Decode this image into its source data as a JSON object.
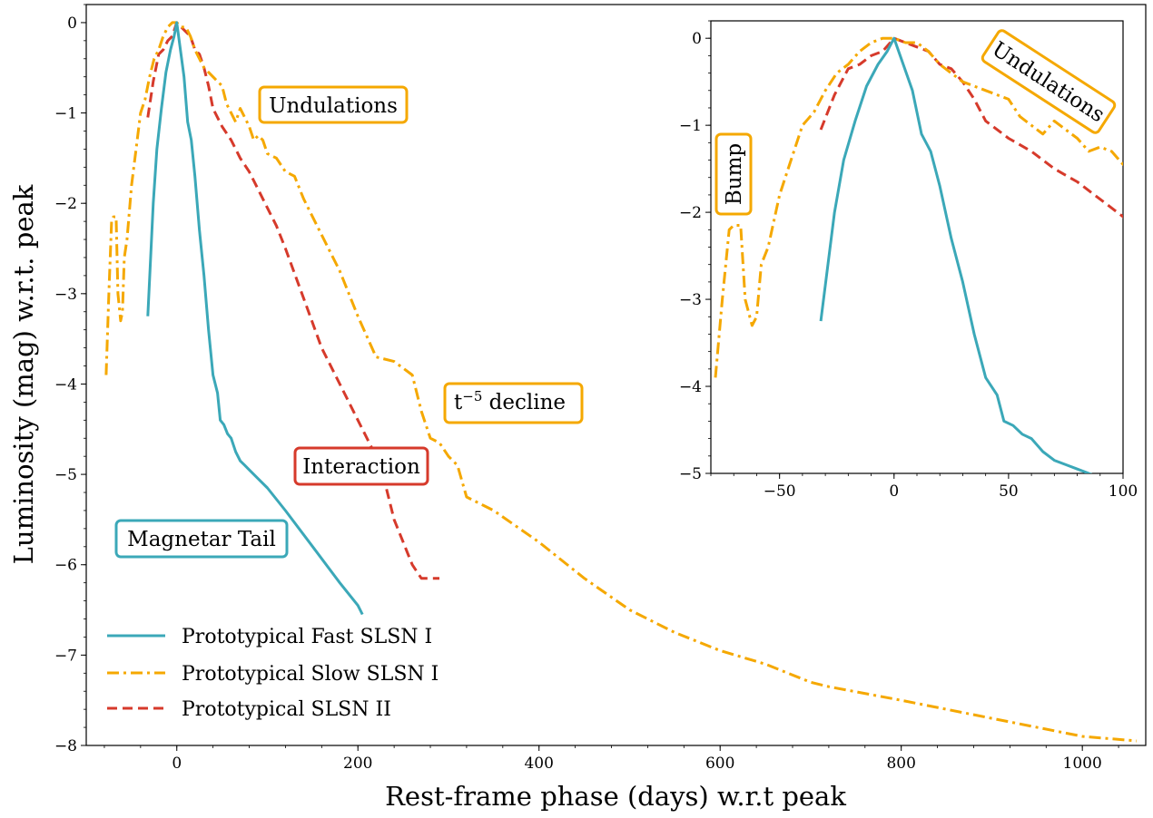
{
  "chart_data": [
    {
      "type": "line",
      "title": "",
      "xlabel": "Rest-frame phase (days) w.r.t peak",
      "ylabel": "Luminosity (mag) w.r.t. peak",
      "xlim": [
        -100,
        1070
      ],
      "ylim": [
        -8,
        0.2
      ],
      "xticks": [
        0,
        200,
        400,
        600,
        800,
        1000
      ],
      "yticks": [
        0,
        -1,
        -2,
        -3,
        -4,
        -5,
        -6,
        -7,
        -8
      ],
      "grid": false,
      "legend": "lower-left",
      "series": [
        {
          "name": "Prototypical Fast SLSN I",
          "color": "#3ba8b8",
          "style": "solid",
          "x": [
            -32,
            -26,
            -22,
            -17,
            -12,
            -7,
            -3,
            0,
            4,
            8,
            12,
            16,
            20,
            25,
            30,
            35,
            40,
            45,
            48,
            52,
            56,
            60,
            65,
            70,
            75,
            80,
            90,
            100,
            120,
            150,
            180,
            200,
            205
          ],
          "y": [
            -3.25,
            -2.0,
            -1.4,
            -0.95,
            -0.55,
            -0.3,
            -0.15,
            0.0,
            -0.3,
            -0.6,
            -1.1,
            -1.3,
            -1.7,
            -2.3,
            -2.8,
            -3.4,
            -3.9,
            -4.1,
            -4.4,
            -4.45,
            -4.55,
            -4.6,
            -4.75,
            -4.85,
            -4.9,
            -4.95,
            -5.05,
            -5.15,
            -5.4,
            -5.8,
            -6.2,
            -6.45,
            -6.55
          ]
        },
        {
          "name": "Prototypical Slow SLSN I",
          "color": "#f5a800",
          "style": "dashdot",
          "x": [
            -78,
            -75,
            -72,
            -70,
            -67,
            -65,
            -62,
            -60,
            -58,
            -55,
            -50,
            -45,
            -40,
            -35,
            -30,
            -25,
            -20,
            -15,
            -10,
            -5,
            0,
            5,
            10,
            15,
            20,
            25,
            30,
            35,
            40,
            45,
            50,
            55,
            60,
            65,
            70,
            75,
            80,
            85,
            90,
            95,
            100,
            110,
            120,
            130,
            140,
            160,
            180,
            200,
            220,
            240,
            260,
            270,
            280,
            290,
            300,
            310,
            320,
            330,
            340,
            350,
            400,
            450,
            500,
            550,
            600,
            650,
            700,
            720,
            800,
            900,
            1000,
            1060
          ],
          "y": [
            -3.9,
            -3.0,
            -2.2,
            -2.15,
            -2.15,
            -3.0,
            -3.3,
            -3.2,
            -2.6,
            -2.4,
            -1.8,
            -1.4,
            -1.0,
            -0.85,
            -0.6,
            -0.4,
            -0.3,
            -0.15,
            -0.05,
            0.0,
            0.0,
            -0.05,
            -0.05,
            -0.15,
            -0.3,
            -0.4,
            -0.5,
            -0.55,
            -0.6,
            -0.65,
            -0.7,
            -0.9,
            -1.0,
            -1.1,
            -0.95,
            -1.05,
            -1.15,
            -1.3,
            -1.25,
            -1.3,
            -1.45,
            -1.5,
            -1.65,
            -1.7,
            -1.95,
            -2.35,
            -2.75,
            -3.25,
            -3.7,
            -3.75,
            -3.9,
            -4.3,
            -4.6,
            -4.65,
            -4.8,
            -4.9,
            -5.25,
            -5.3,
            -5.35,
            -5.4,
            -5.75,
            -6.15,
            -6.5,
            -6.75,
            -6.95,
            -7.1,
            -7.3,
            -7.35,
            -7.5,
            -7.7,
            -7.9,
            -7.95
          ]
        },
        {
          "name": "Prototypical SLSN II",
          "color": "#d63a2b",
          "style": "dashed",
          "x": [
            -32,
            -26,
            -20,
            -15,
            -10,
            -5,
            0,
            5,
            10,
            15,
            20,
            25,
            30,
            35,
            40,
            50,
            60,
            70,
            80,
            90,
            100,
            110,
            120,
            140,
            160,
            180,
            200,
            220,
            230,
            240,
            260,
            270,
            290
          ],
          "y": [
            -1.05,
            -0.65,
            -0.35,
            -0.3,
            -0.2,
            -0.15,
            0.0,
            -0.05,
            -0.1,
            -0.15,
            -0.3,
            -0.35,
            -0.5,
            -0.7,
            -0.95,
            -1.15,
            -1.3,
            -1.5,
            -1.65,
            -1.85,
            -2.05,
            -2.25,
            -2.5,
            -3.05,
            -3.6,
            -4.0,
            -4.4,
            -4.8,
            -5.1,
            -5.5,
            -6.0,
            -6.15,
            -6.15
          ]
        }
      ],
      "annotations": [
        {
          "text": "Undulations",
          "color": "#f5a800"
        },
        {
          "text_main": "t",
          "text_sup": "−5",
          "text_rest": " decline",
          "color": "#f5a800"
        },
        {
          "text": "Interaction",
          "color": "#d63a2b"
        },
        {
          "text": "Magnetar Tail",
          "color": "#3ba8b8"
        }
      ]
    },
    {
      "type": "line",
      "title": "",
      "xlabel": "",
      "ylabel": "",
      "xlim": [
        -80,
        100
      ],
      "ylim": [
        -5,
        0.2
      ],
      "xticks": [
        -50,
        0,
        50,
        100
      ],
      "yticks": [
        0,
        -1,
        -2,
        -3,
        -4,
        -5
      ],
      "grid": false,
      "annotations": [
        {
          "text": "Bump",
          "color": "#f5a800"
        },
        {
          "text": "Undulations",
          "color": "#f5a800"
        }
      ]
    }
  ],
  "legend": {
    "entries": [
      "Prototypical Fast SLSN I",
      "Prototypical Slow SLSN I",
      "Prototypical SLSN II"
    ]
  }
}
